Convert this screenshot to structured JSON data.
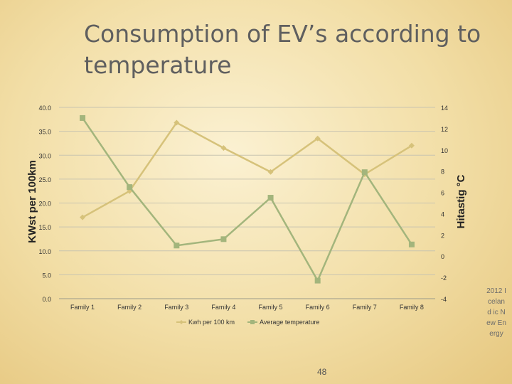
{
  "slide": {
    "title": "Consumption of EV’s according to temperature",
    "page_number": "48",
    "side_note": "2012 Iceland ic New Energy"
  },
  "colors": {
    "series_kwh": "#d6c27a",
    "series_temp": "#a3b57c",
    "gridline": "#c8c4b0",
    "axis_text": "#333333"
  },
  "chart_data": {
    "type": "line",
    "categories": [
      "Family 1",
      "Family 2",
      "Family 3",
      "Family 4",
      "Family 5",
      "Family 6",
      "Family 7",
      "Family 8"
    ],
    "y_left": {
      "label": "KWst per 100km",
      "ylim": [
        0,
        40
      ],
      "ticks": [
        "0.0",
        "5.0",
        "10.0",
        "15.0",
        "20.0",
        "25.0",
        "30.0",
        "35.0",
        "40.0"
      ]
    },
    "y_right": {
      "label": "Hitastig °C",
      "ylim": [
        -4,
        14
      ],
      "ticks": [
        "-4",
        "-2",
        "0",
        "2",
        "4",
        "6",
        "8",
        "10",
        "12",
        "14"
      ]
    },
    "series": [
      {
        "name": "Kwh per 100 km",
        "axis": "left",
        "marker": "diamond",
        "values": [
          17.0,
          22.5,
          36.8,
          31.5,
          26.5,
          33.5,
          26.0,
          32.0
        ]
      },
      {
        "name": "Average temperature",
        "axis": "right",
        "marker": "square",
        "values": [
          13.0,
          6.5,
          1.0,
          1.6,
          5.5,
          -2.3,
          7.9,
          1.1
        ]
      }
    ],
    "grid": true,
    "legend_position": "bottom"
  }
}
